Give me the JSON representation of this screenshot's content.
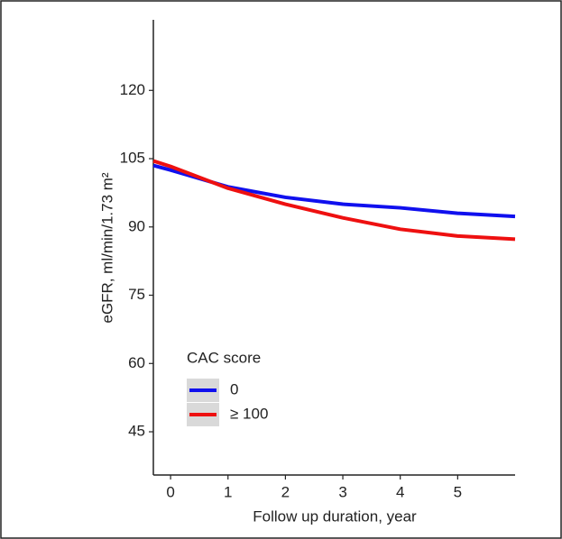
{
  "chart_data": {
    "type": "line",
    "x_label": "Follow up duration, year",
    "y_label": "eGFR, ml/min/1.73 m²",
    "x": [
      -0.3,
      0,
      1,
      2,
      3,
      4,
      5,
      6.0
    ],
    "series": [
      {
        "name": "0",
        "color": "#1010ee",
        "values": [
          103.5,
          102.5,
          98.8,
          96.5,
          95,
          94.2,
          93,
          92.3
        ]
      },
      {
        "name": "≥ 100",
        "color": "#ee1010",
        "values": [
          104.5,
          103.3,
          98.5,
          95,
          92,
          89.5,
          88,
          87.3
        ]
      }
    ],
    "legend_title": "CAC score",
    "xlim": [
      -0.3,
      6.0
    ],
    "xticks": [
      0,
      1,
      2,
      3,
      4,
      5
    ],
    "ylim": [
      35.5,
      135.5
    ],
    "yticks": [
      45,
      60,
      75,
      90,
      105,
      120
    ]
  }
}
